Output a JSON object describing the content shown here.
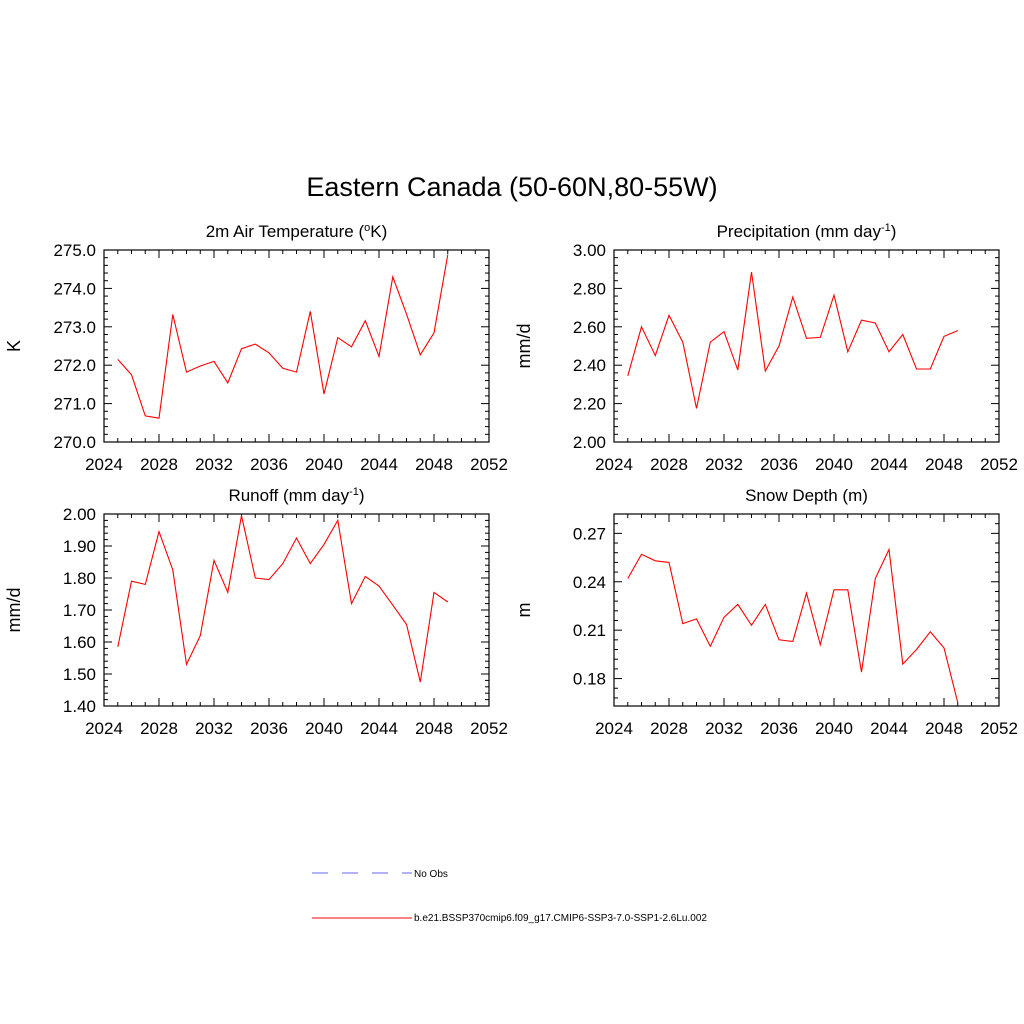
{
  "figure": {
    "title": "Eastern Canada (50-60N,80-55W)"
  },
  "colors": {
    "line": "#ff0000",
    "noobs": "#9999ff",
    "axis": "#000000"
  },
  "legend": {
    "items": [
      {
        "label": "No Obs",
        "style": "dashed"
      },
      {
        "label": "b.e21.BSSP370cmip6.f09_g17.CMIP6-SSP3-7.0-SSP1-2.6Lu.002",
        "style": "solid"
      }
    ]
  },
  "chart_data": [
    {
      "type": "line",
      "title": "2m Air Temperature (",
      "title_sup": "o",
      "title_tail": "K)",
      "title_sup2": "",
      "title_tail2": "",
      "ylabel": "K",
      "xlim": [
        2024,
        2052
      ],
      "ylim": [
        270.0,
        275.0
      ],
      "xticks": [
        2024,
        2028,
        2032,
        2036,
        2040,
        2044,
        2048,
        2052
      ],
      "yticks": [
        "270.0",
        "271.0",
        "272.0",
        "273.0",
        "274.0",
        "275.0"
      ],
      "x": [
        2025,
        2026,
        2027,
        2028,
        2029,
        2030,
        2031,
        2032,
        2033,
        2034,
        2035,
        2036,
        2037,
        2038,
        2039,
        2040,
        2041,
        2042,
        2043,
        2044,
        2045,
        2046,
        2047,
        2048,
        2049
      ],
      "series": [
        {
          "values": [
            272.15,
            271.75,
            270.68,
            270.62,
            273.32,
            271.82,
            271.98,
            272.1,
            271.54,
            272.43,
            272.55,
            272.32,
            271.92,
            271.82,
            273.4,
            271.25,
            272.72,
            272.48,
            273.16,
            272.23,
            274.3,
            273.33,
            272.27,
            272.84,
            274.88
          ]
        }
      ]
    },
    {
      "type": "line",
      "title": "Precipitation (mm day",
      "title_sup": "-1",
      "title_tail": ")",
      "title_sup2": "",
      "title_tail2": "",
      "ylabel": "mm/d",
      "xlim": [
        2024,
        2052
      ],
      "ylim": [
        2.0,
        3.0
      ],
      "xticks": [
        2024,
        2028,
        2032,
        2036,
        2040,
        2044,
        2048,
        2052
      ],
      "yticks": [
        "2.00",
        "2.20",
        "2.40",
        "2.60",
        "2.80",
        "3.00"
      ],
      "x": [
        2025,
        2026,
        2027,
        2028,
        2029,
        2030,
        2031,
        2032,
        2033,
        2034,
        2035,
        2036,
        2037,
        2038,
        2039,
        2040,
        2041,
        2042,
        2043,
        2044,
        2045,
        2046,
        2047,
        2048,
        2049
      ],
      "series": [
        {
          "values": [
            2.345,
            2.6,
            2.45,
            2.66,
            2.52,
            2.175,
            2.52,
            2.575,
            2.375,
            2.885,
            2.37,
            2.5,
            2.755,
            2.54,
            2.545,
            2.765,
            2.47,
            2.635,
            2.62,
            2.47,
            2.56,
            2.38,
            2.38,
            2.55,
            2.58
          ]
        }
      ]
    },
    {
      "type": "line",
      "title": "Runoff (mm day",
      "title_sup": "-1",
      "title_tail": ")",
      "title_sup2": "",
      "title_tail2": "",
      "ylabel": "mm/d",
      "xlim": [
        2024,
        2052
      ],
      "ylim": [
        1.4,
        2.0
      ],
      "xticks": [
        2024,
        2028,
        2032,
        2036,
        2040,
        2044,
        2048,
        2052
      ],
      "yticks": [
        "1.40",
        "1.50",
        "1.60",
        "1.70",
        "1.80",
        "1.90",
        "2.00"
      ],
      "x": [
        2025,
        2026,
        2027,
        2028,
        2029,
        2030,
        2031,
        2032,
        2033,
        2034,
        2035,
        2036,
        2037,
        2038,
        2039,
        2040,
        2041,
        2042,
        2043,
        2044,
        2045,
        2046,
        2047,
        2048,
        2049
      ],
      "series": [
        {
          "values": [
            1.585,
            1.79,
            1.78,
            1.945,
            1.825,
            1.53,
            1.62,
            1.855,
            1.755,
            1.995,
            1.8,
            1.795,
            1.845,
            1.925,
            1.845,
            1.905,
            1.98,
            1.72,
            1.805,
            1.775,
            1.715,
            1.655,
            1.475,
            1.755,
            1.725
          ]
        }
      ]
    },
    {
      "type": "line",
      "title": "Snow Depth (m)",
      "title_sup": "",
      "title_tail": "",
      "title_sup2": "",
      "title_tail2": "",
      "ylabel": "m",
      "xlim": [
        2024,
        2052
      ],
      "ylim": [
        0.163,
        0.282
      ],
      "xticks": [
        2024,
        2028,
        2032,
        2036,
        2040,
        2044,
        2048,
        2052
      ],
      "yticks": [
        "0.18",
        "0.21",
        "0.24",
        "0.27"
      ],
      "yticks_values": [
        0.18,
        0.21,
        0.24,
        0.27
      ],
      "x": [
        2025,
        2026,
        2027,
        2028,
        2029,
        2030,
        2031,
        2032,
        2033,
        2034,
        2035,
        2036,
        2037,
        2038,
        2039,
        2040,
        2041,
        2042,
        2043,
        2044,
        2045,
        2046,
        2047,
        2048,
        2049
      ],
      "series": [
        {
          "values": [
            0.242,
            0.257,
            0.253,
            0.252,
            0.214,
            0.217,
            0.2,
            0.218,
            0.226,
            0.213,
            0.226,
            0.204,
            0.203,
            0.233,
            0.201,
            0.235,
            0.235,
            0.184,
            0.242,
            0.26,
            0.189,
            0.198,
            0.209,
            0.199,
            0.165
          ]
        }
      ]
    }
  ]
}
